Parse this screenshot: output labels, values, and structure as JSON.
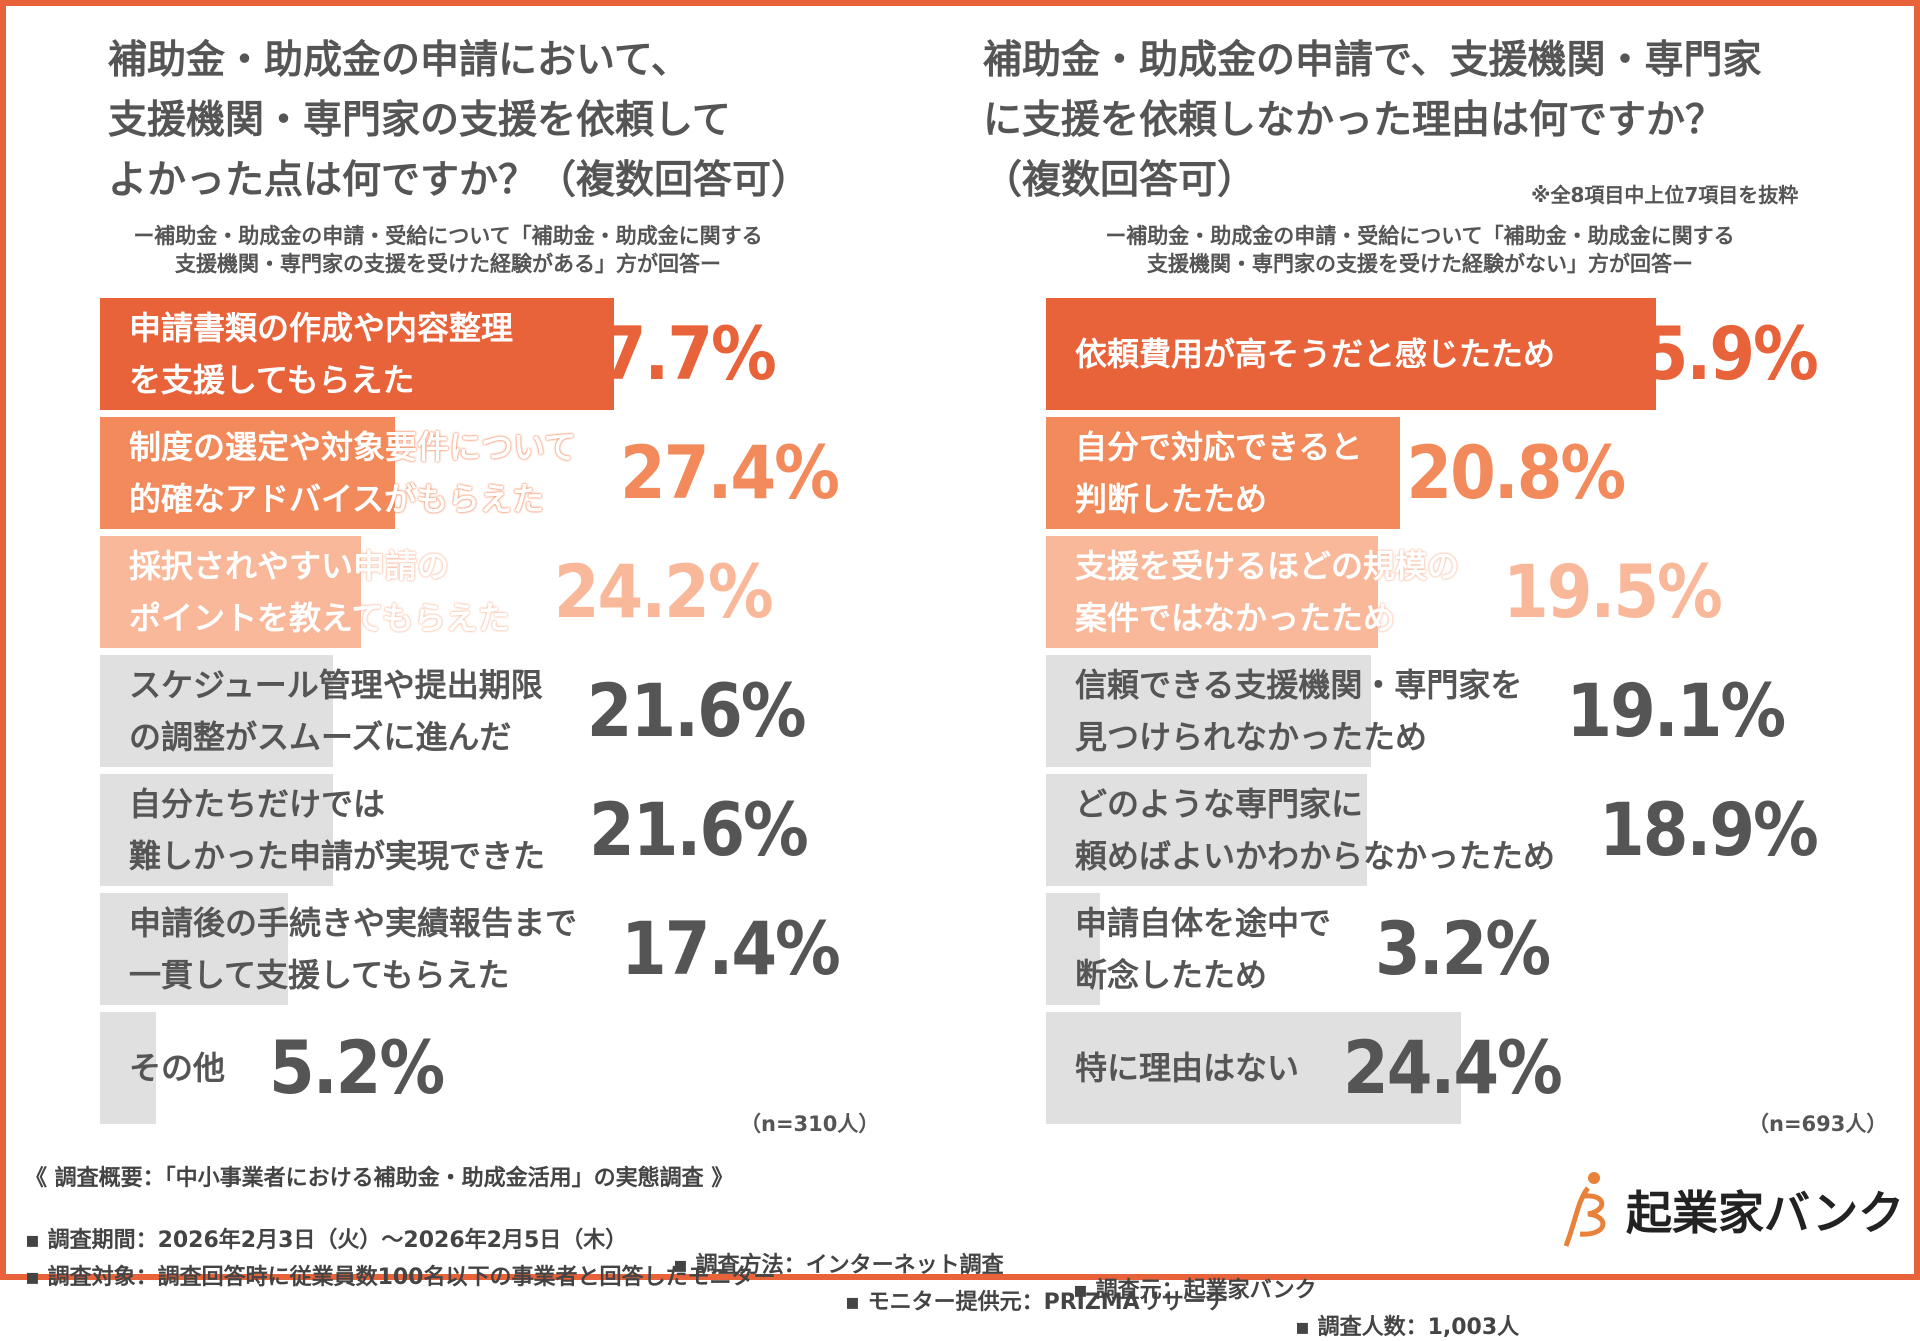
{
  "left": {
    "title": "補助金・助成金の申請において、\n支援機関・専門家の支援を依頼して\nよかった点は何ですか？（複数回答可）",
    "subtitle": "ー補助金・助成金の申請・受給について「補助金・助成金に関する\n支援機関・専門家の支援を受けた経験がある」方が回答ー",
    "n": "（n=310人）"
  },
  "right": {
    "title": "補助金・助成金の申請で、支援機関・専門家\nに支援を依頼しなかった理由は何ですか？\n（複数回答可）",
    "note": "※全8項目中上位7項目を抜粋",
    "subtitle": "ー補助金・助成金の申請・受給について「補助金・助成金に関する\n支援機関・専門家の支援を受けた経験がない」方が回答ー",
    "n": "（n=693人）"
  },
  "colors": {
    "rank1": "#e8623a",
    "rank2": "#f28a5c",
    "rank3": "#f9b89a",
    "other": "#e0e0e0",
    "text": "#555555",
    "border": "#e8623a"
  },
  "chart_data": [
    {
      "type": "bar",
      "orientation": "horizontal",
      "unit": "%",
      "categories": [
        "申請書類の作成や内容整理\nを支援してもらえた",
        "制度の選定や対象要件について\n的確なアドバイスがもらえた",
        "採択されやすい申請の\nポイントを教えてもらえた",
        "スケジュール管理や提出期限\nの調整がスムーズに進んだ",
        "自分たちだけでは\n難しかった申請が実現できた",
        "申請後の手続きや実績報告まで\n一貫して支援してもらえた",
        "その他"
      ],
      "values": [
        47.7,
        27.4,
        24.2,
        21.6,
        21.6,
        17.4,
        5.2
      ],
      "labels": [
        "47.7%",
        "27.4%",
        "24.2%",
        "21.6%",
        "21.6%",
        "17.4%",
        "5.2%"
      ]
    },
    {
      "type": "bar",
      "orientation": "horizontal",
      "unit": "%",
      "categories": [
        "依頼費用が高そうだと感じたため",
        "自分で対応できると\n判断したため",
        "支援を受けるほどの規模の\n案件ではなかったため",
        "信頼できる支援機関・専門家を\n見つけられなかったため",
        "どのような専門家に\n頼めばよいかわからなかったため",
        "申請自体を途中で\n断念したため",
        "特に理由はない"
      ],
      "values": [
        35.9,
        20.8,
        19.5,
        19.1,
        18.9,
        3.2,
        24.4
      ],
      "labels": [
        "35.9%",
        "20.8%",
        "19.5%",
        "19.1%",
        "18.9%",
        "3.2%",
        "24.4%"
      ]
    }
  ],
  "footer": {
    "heading": "《 調査概要：「中小事業者における補助金・助成金活用」の実態調査 》",
    "period": "▪ 調査期間：2026年2月3日（火）〜2026年2月5日（木）",
    "method": "▪ 調査方法：インターネット調査",
    "org": "▪ 調査元：起業家バンク",
    "target": "▪ 調査対象：調査回答時に従業員数100名以下の事業者と回答したモニター",
    "provider": "▪ モニター提供元：PRIZMAリサーチ",
    "count": "▪ 調査人数：1,003人"
  },
  "logo": {
    "text": "起業家バンク",
    "icon": "person-b-logo-icon"
  }
}
